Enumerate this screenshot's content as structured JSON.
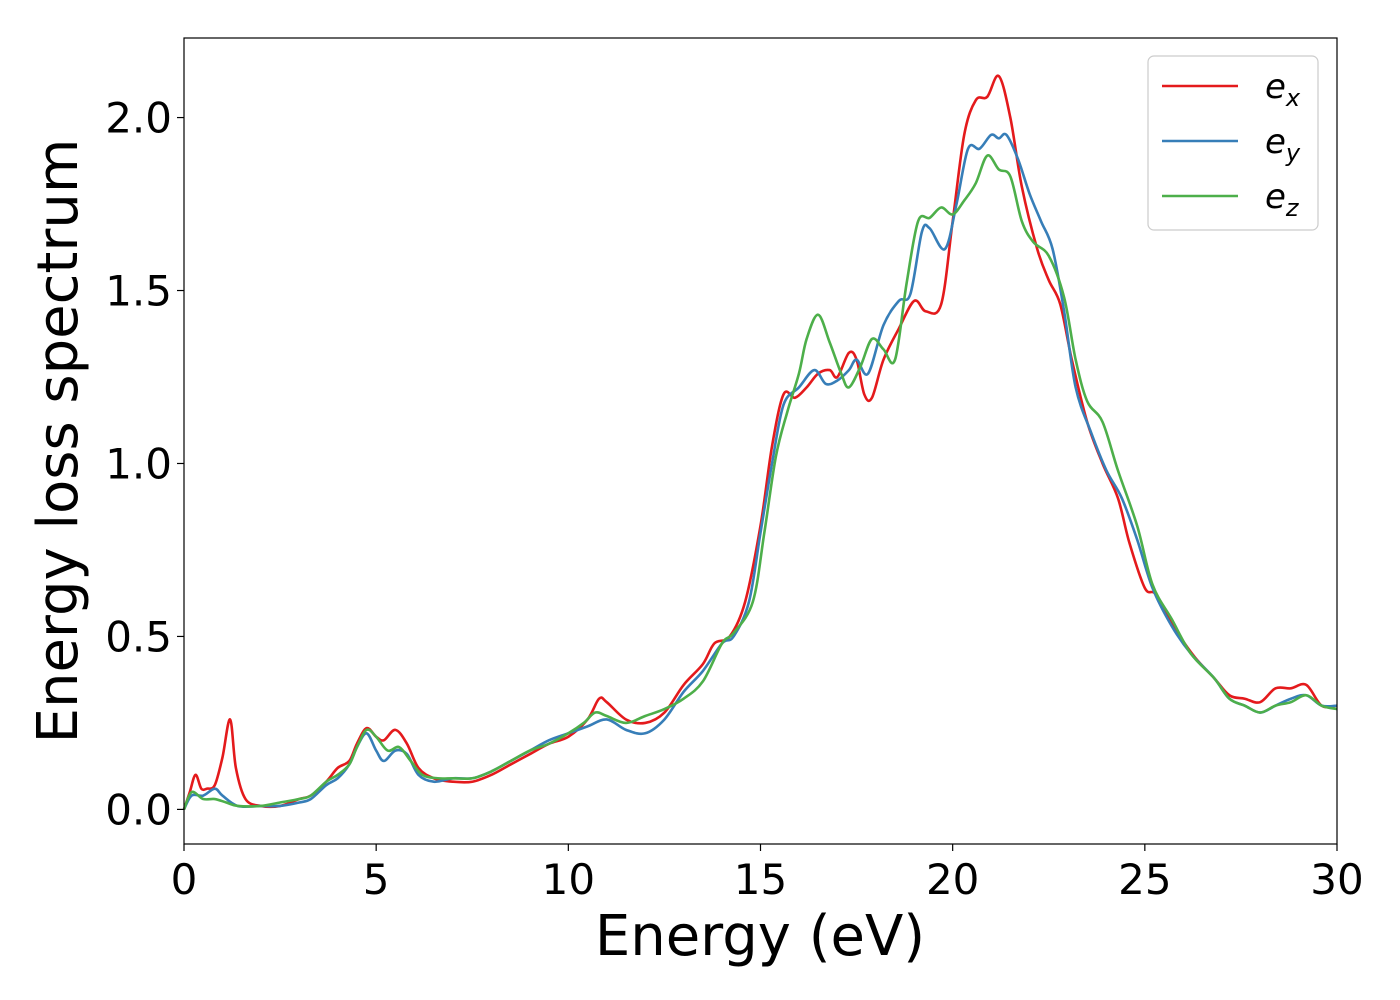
{
  "chart_data": {
    "type": "line",
    "xlabel": "Energy (eV)",
    "ylabel": "Energy loss spectrum",
    "xlim": [
      0,
      30
    ],
    "ylim": [
      -0.1,
      2.23
    ],
    "xticks": [
      0,
      5,
      10,
      15,
      20,
      25,
      30
    ],
    "xtick_labels": [
      "0",
      "5",
      "10",
      "15",
      "20",
      "25",
      "30"
    ],
    "yticks": [
      0.0,
      0.5,
      1.0,
      1.5,
      2.0
    ],
    "ytick_labels": [
      "0.0",
      "0.5",
      "1.0",
      "1.5",
      "2.0"
    ],
    "grid": false,
    "legend_position": "top-right",
    "series": [
      {
        "name": "e_x",
        "label_base": "e",
        "label_sub": "x",
        "color": "#e41a1c",
        "points": [
          [
            0,
            0
          ],
          [
            0.15,
            0.05
          ],
          [
            0.3,
            0.1
          ],
          [
            0.45,
            0.06
          ],
          [
            0.6,
            0.06
          ],
          [
            0.8,
            0.07
          ],
          [
            1.0,
            0.15
          ],
          [
            1.2,
            0.26
          ],
          [
            1.35,
            0.12
          ],
          [
            1.6,
            0.03
          ],
          [
            2.0,
            0.01
          ],
          [
            2.5,
            0.01
          ],
          [
            3.0,
            0.03
          ],
          [
            3.3,
            0.04
          ],
          [
            3.7,
            0.08
          ],
          [
            4.0,
            0.12
          ],
          [
            4.3,
            0.14
          ],
          [
            4.5,
            0.19
          ],
          [
            4.75,
            0.235
          ],
          [
            5.0,
            0.21
          ],
          [
            5.2,
            0.2
          ],
          [
            5.5,
            0.23
          ],
          [
            5.8,
            0.19
          ],
          [
            6.1,
            0.12
          ],
          [
            6.5,
            0.09
          ],
          [
            7.0,
            0.08
          ],
          [
            7.5,
            0.08
          ],
          [
            8.0,
            0.1
          ],
          [
            8.5,
            0.13
          ],
          [
            9.0,
            0.16
          ],
          [
            9.5,
            0.19
          ],
          [
            10.0,
            0.21
          ],
          [
            10.5,
            0.26
          ],
          [
            10.8,
            0.32
          ],
          [
            11.0,
            0.31
          ],
          [
            11.5,
            0.26
          ],
          [
            12.0,
            0.25
          ],
          [
            12.5,
            0.28
          ],
          [
            13.0,
            0.36
          ],
          [
            13.5,
            0.42
          ],
          [
            13.8,
            0.48
          ],
          [
            14.2,
            0.5
          ],
          [
            14.6,
            0.6
          ],
          [
            15.0,
            0.82
          ],
          [
            15.3,
            1.05
          ],
          [
            15.6,
            1.2
          ],
          [
            15.9,
            1.19
          ],
          [
            16.2,
            1.22
          ],
          [
            16.5,
            1.26
          ],
          [
            16.8,
            1.27
          ],
          [
            17.0,
            1.25
          ],
          [
            17.3,
            1.32
          ],
          [
            17.5,
            1.3
          ],
          [
            17.7,
            1.2
          ],
          [
            17.9,
            1.19
          ],
          [
            18.2,
            1.3
          ],
          [
            18.6,
            1.39
          ],
          [
            19.0,
            1.47
          ],
          [
            19.3,
            1.44
          ],
          [
            19.7,
            1.46
          ],
          [
            20.0,
            1.7
          ],
          [
            20.3,
            1.95
          ],
          [
            20.6,
            2.05
          ],
          [
            20.9,
            2.06
          ],
          [
            21.2,
            2.12
          ],
          [
            21.5,
            2.0
          ],
          [
            21.8,
            1.8
          ],
          [
            22.2,
            1.62
          ],
          [
            22.5,
            1.53
          ],
          [
            22.8,
            1.46
          ],
          [
            23.1,
            1.3
          ],
          [
            23.5,
            1.12
          ],
          [
            23.9,
            1.0
          ],
          [
            24.3,
            0.9
          ],
          [
            24.6,
            0.77
          ],
          [
            25.0,
            0.64
          ],
          [
            25.3,
            0.62
          ],
          [
            25.8,
            0.52
          ],
          [
            26.3,
            0.44
          ],
          [
            26.8,
            0.38
          ],
          [
            27.2,
            0.33
          ],
          [
            27.6,
            0.32
          ],
          [
            28.0,
            0.31
          ],
          [
            28.4,
            0.35
          ],
          [
            28.8,
            0.35
          ],
          [
            29.2,
            0.36
          ],
          [
            29.6,
            0.3
          ],
          [
            30.0,
            0.3
          ]
        ]
      },
      {
        "name": "e_y",
        "label_base": "e",
        "label_sub": "y",
        "color": "#377eb8",
        "points": [
          [
            0,
            0
          ],
          [
            0.2,
            0.04
          ],
          [
            0.5,
            0.04
          ],
          [
            0.8,
            0.06
          ],
          [
            1.0,
            0.04
          ],
          [
            1.4,
            0.01
          ],
          [
            2.0,
            0.01
          ],
          [
            2.5,
            0.01
          ],
          [
            3.0,
            0.02
          ],
          [
            3.3,
            0.03
          ],
          [
            3.7,
            0.07
          ],
          [
            4.0,
            0.09
          ],
          [
            4.3,
            0.13
          ],
          [
            4.5,
            0.18
          ],
          [
            4.75,
            0.22
          ],
          [
            5.0,
            0.17
          ],
          [
            5.2,
            0.14
          ],
          [
            5.5,
            0.17
          ],
          [
            5.8,
            0.16
          ],
          [
            6.1,
            0.1
          ],
          [
            6.5,
            0.08
          ],
          [
            7.0,
            0.09
          ],
          [
            7.5,
            0.09
          ],
          [
            8.0,
            0.11
          ],
          [
            8.5,
            0.14
          ],
          [
            9.0,
            0.17
          ],
          [
            9.5,
            0.2
          ],
          [
            10.0,
            0.22
          ],
          [
            10.5,
            0.24
          ],
          [
            11.0,
            0.26
          ],
          [
            11.5,
            0.23
          ],
          [
            12.0,
            0.22
          ],
          [
            12.5,
            0.26
          ],
          [
            13.0,
            0.34
          ],
          [
            13.5,
            0.4
          ],
          [
            14.0,
            0.48
          ],
          [
            14.3,
            0.5
          ],
          [
            14.7,
            0.6
          ],
          [
            15.0,
            0.8
          ],
          [
            15.3,
            1.0
          ],
          [
            15.6,
            1.17
          ],
          [
            16.0,
            1.22
          ],
          [
            16.4,
            1.27
          ],
          [
            16.7,
            1.23
          ],
          [
            17.0,
            1.24
          ],
          [
            17.3,
            1.27
          ],
          [
            17.5,
            1.3
          ],
          [
            17.8,
            1.26
          ],
          [
            18.2,
            1.4
          ],
          [
            18.6,
            1.47
          ],
          [
            18.9,
            1.49
          ],
          [
            19.2,
            1.67
          ],
          [
            19.4,
            1.68
          ],
          [
            19.8,
            1.62
          ],
          [
            20.1,
            1.75
          ],
          [
            20.4,
            1.91
          ],
          [
            20.7,
            1.91
          ],
          [
            21.0,
            1.95
          ],
          [
            21.2,
            1.94
          ],
          [
            21.4,
            1.95
          ],
          [
            21.7,
            1.88
          ],
          [
            22.0,
            1.78
          ],
          [
            22.3,
            1.7
          ],
          [
            22.6,
            1.62
          ],
          [
            22.9,
            1.44
          ],
          [
            23.2,
            1.22
          ],
          [
            23.6,
            1.09
          ],
          [
            24.0,
            0.98
          ],
          [
            24.4,
            0.9
          ],
          [
            24.8,
            0.78
          ],
          [
            25.2,
            0.64
          ],
          [
            25.7,
            0.53
          ],
          [
            26.2,
            0.45
          ],
          [
            26.8,
            0.38
          ],
          [
            27.2,
            0.32
          ],
          [
            27.6,
            0.3
          ],
          [
            28.0,
            0.28
          ],
          [
            28.4,
            0.3
          ],
          [
            28.8,
            0.32
          ],
          [
            29.2,
            0.33
          ],
          [
            29.6,
            0.3
          ],
          [
            30.0,
            0.3
          ]
        ]
      },
      {
        "name": "e_z",
        "label_base": "e",
        "label_sub": "z",
        "color": "#4daf4a",
        "points": [
          [
            0,
            0
          ],
          [
            0.2,
            0.05
          ],
          [
            0.5,
            0.03
          ],
          [
            0.8,
            0.03
          ],
          [
            1.1,
            0.02
          ],
          [
            1.4,
            0.01
          ],
          [
            2.0,
            0.01
          ],
          [
            2.5,
            0.02
          ],
          [
            3.0,
            0.03
          ],
          [
            3.3,
            0.04
          ],
          [
            3.7,
            0.08
          ],
          [
            4.0,
            0.1
          ],
          [
            4.3,
            0.13
          ],
          [
            4.5,
            0.18
          ],
          [
            4.75,
            0.23
          ],
          [
            5.0,
            0.21
          ],
          [
            5.3,
            0.17
          ],
          [
            5.6,
            0.18
          ],
          [
            5.9,
            0.14
          ],
          [
            6.2,
            0.1
          ],
          [
            6.6,
            0.09
          ],
          [
            7.0,
            0.09
          ],
          [
            7.5,
            0.09
          ],
          [
            8.0,
            0.11
          ],
          [
            8.5,
            0.14
          ],
          [
            9.0,
            0.17
          ],
          [
            9.5,
            0.19
          ],
          [
            10.0,
            0.22
          ],
          [
            10.4,
            0.25
          ],
          [
            10.7,
            0.28
          ],
          [
            11.0,
            0.27
          ],
          [
            11.5,
            0.25
          ],
          [
            12.0,
            0.27
          ],
          [
            12.5,
            0.29
          ],
          [
            13.0,
            0.32
          ],
          [
            13.5,
            0.37
          ],
          [
            14.0,
            0.48
          ],
          [
            14.3,
            0.51
          ],
          [
            14.8,
            0.6
          ],
          [
            15.1,
            0.8
          ],
          [
            15.4,
            1.02
          ],
          [
            15.7,
            1.15
          ],
          [
            16.0,
            1.26
          ],
          [
            16.2,
            1.36
          ],
          [
            16.5,
            1.43
          ],
          [
            16.8,
            1.35
          ],
          [
            17.1,
            1.26
          ],
          [
            17.3,
            1.22
          ],
          [
            17.6,
            1.28
          ],
          [
            17.9,
            1.36
          ],
          [
            18.2,
            1.33
          ],
          [
            18.5,
            1.3
          ],
          [
            18.8,
            1.52
          ],
          [
            19.1,
            1.7
          ],
          [
            19.4,
            1.71
          ],
          [
            19.7,
            1.74
          ],
          [
            20.0,
            1.72
          ],
          [
            20.3,
            1.76
          ],
          [
            20.6,
            1.81
          ],
          [
            20.9,
            1.89
          ],
          [
            21.2,
            1.85
          ],
          [
            21.5,
            1.83
          ],
          [
            21.8,
            1.7
          ],
          [
            22.1,
            1.64
          ],
          [
            22.5,
            1.6
          ],
          [
            22.9,
            1.48
          ],
          [
            23.2,
            1.3
          ],
          [
            23.5,
            1.18
          ],
          [
            23.9,
            1.12
          ],
          [
            24.3,
            0.98
          ],
          [
            24.8,
            0.82
          ],
          [
            25.2,
            0.65
          ],
          [
            25.7,
            0.55
          ],
          [
            26.2,
            0.45
          ],
          [
            26.8,
            0.38
          ],
          [
            27.2,
            0.32
          ],
          [
            27.6,
            0.3
          ],
          [
            28.0,
            0.28
          ],
          [
            28.4,
            0.3
          ],
          [
            28.8,
            0.31
          ],
          [
            29.2,
            0.33
          ],
          [
            29.6,
            0.3
          ],
          [
            30.0,
            0.29
          ]
        ]
      }
    ]
  }
}
